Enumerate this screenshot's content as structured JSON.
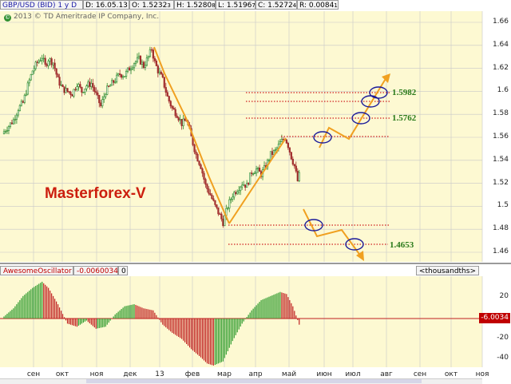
{
  "header": {
    "symbol": "GBP/USD (BID) 1 y D",
    "date": "D: 16.05.13",
    "open": "O: 1.5232",
    "open_small": "3",
    "high": "H: 1.5280",
    "high_small": "8",
    "low": "L: 1.5196",
    "low_small": "7",
    "close": "C: 1.5272",
    "close_small": "4",
    "range": "R: 0.0084",
    "range_small": "1"
  },
  "copyright": "2013 © TD Ameritrade IP Company, Inc.",
  "watermark": "Masterforex-V",
  "levels": {
    "upper_top": "1.5982",
    "upper_mid": "1.5762",
    "lower": "1.4653"
  },
  "price_axis": [
    "1.66",
    "1.64",
    "1.62",
    "1.6",
    "1.58",
    "1.56",
    "1.54",
    "1.52",
    "1.5",
    "1.48",
    "1.46"
  ],
  "oscillator": {
    "name": "AwesomeOscillator",
    "value": "-0.0060034",
    "param": "0",
    "units": "<thousandths>",
    "current_label": "-6.0034",
    "axis": [
      "20",
      "0",
      "-20",
      "-40"
    ]
  },
  "time_axis": [
    "сен",
    "окт",
    "ноя",
    "дек",
    "13",
    "фев",
    "мар",
    "апр",
    "май",
    "июн",
    "июл",
    "авг",
    "сен",
    "окт",
    "ноя"
  ],
  "colors": {
    "chart_bg": "#fdf9d2",
    "grid": "#c8c8c8",
    "candle_up": "#2b8a2b",
    "candle_down": "#a12d2d",
    "annotation": "#f0a020",
    "level_line": "#d02020",
    "ellipse": "#1a1a9a",
    "osc_up": "#2b9a2b",
    "osc_down": "#c02020"
  },
  "chart_data": {
    "type": "candlestick",
    "symbol": "GBP/USD",
    "timeframe": "D",
    "y_range": [
      1.455,
      1.67
    ],
    "x": [
      "сен",
      "окт",
      "ноя",
      "дек",
      "13",
      "фев",
      "мар",
      "апр",
      "май"
    ],
    "close_path": [
      [
        0,
        1.565
      ],
      [
        3,
        1.57
      ],
      [
        6,
        1.575
      ],
      [
        9,
        1.585
      ],
      [
        12,
        1.59
      ],
      [
        15,
        1.605
      ],
      [
        18,
        1.618
      ],
      [
        21,
        1.625
      ],
      [
        24,
        1.63
      ],
      [
        26,
        1.622
      ],
      [
        28,
        1.628
      ],
      [
        31,
        1.625
      ],
      [
        34,
        1.61
      ],
      [
        37,
        1.602
      ],
      [
        40,
        1.6
      ],
      [
        43,
        1.598
      ],
      [
        46,
        1.607
      ],
      [
        49,
        1.6
      ],
      [
        52,
        1.605
      ],
      [
        55,
        1.607
      ],
      [
        58,
        1.597
      ],
      [
        61,
        1.587
      ],
      [
        64,
        1.6
      ],
      [
        67,
        1.605
      ],
      [
        70,
        1.61
      ],
      [
        73,
        1.615
      ],
      [
        76,
        1.614
      ],
      [
        79,
        1.62
      ],
      [
        82,
        1.625
      ],
      [
        85,
        1.628
      ],
      [
        88,
        1.622
      ],
      [
        91,
        1.63
      ],
      [
        93,
        1.637
      ],
      [
        95,
        1.625
      ],
      [
        97,
        1.618
      ],
      [
        100,
        1.61
      ],
      [
        103,
        1.595
      ],
      [
        106,
        1.585
      ],
      [
        109,
        1.58
      ],
      [
        112,
        1.572
      ],
      [
        115,
        1.575
      ],
      [
        118,
        1.56
      ],
      [
        121,
        1.545
      ],
      [
        124,
        1.535
      ],
      [
        127,
        1.518
      ],
      [
        130,
        1.51
      ],
      [
        133,
        1.5
      ],
      [
        136,
        1.492
      ],
      [
        138,
        1.486
      ],
      [
        141,
        1.5
      ],
      [
        144,
        1.51
      ],
      [
        147,
        1.515
      ],
      [
        150,
        1.52
      ],
      [
        153,
        1.518
      ],
      [
        156,
        1.53
      ],
      [
        159,
        1.532
      ],
      [
        162,
        1.528
      ],
      [
        165,
        1.535
      ],
      [
        168,
        1.545
      ],
      [
        171,
        1.548
      ],
      [
        174,
        1.555
      ],
      [
        177,
        1.56
      ],
      [
        179,
        1.553
      ],
      [
        181,
        1.543
      ],
      [
        183,
        1.535
      ],
      [
        185,
        1.522
      ],
      [
        186,
        1.527
      ]
    ],
    "oscillator_values": [
      [
        0,
        2
      ],
      [
        6,
        10
      ],
      [
        12,
        22
      ],
      [
        18,
        30
      ],
      [
        24,
        36
      ],
      [
        28,
        30
      ],
      [
        34,
        14
      ],
      [
        40,
        -5
      ],
      [
        46,
        -8
      ],
      [
        52,
        -2
      ],
      [
        58,
        -10
      ],
      [
        64,
        -8
      ],
      [
        70,
        4
      ],
      [
        76,
        12
      ],
      [
        82,
        14
      ],
      [
        88,
        10
      ],
      [
        94,
        8
      ],
      [
        100,
        -6
      ],
      [
        106,
        -14
      ],
      [
        112,
        -20
      ],
      [
        118,
        -30
      ],
      [
        124,
        -38
      ],
      [
        128,
        -44
      ],
      [
        132,
        -46
      ],
      [
        138,
        -42
      ],
      [
        144,
        -22
      ],
      [
        150,
        -5
      ],
      [
        156,
        8
      ],
      [
        162,
        18
      ],
      [
        168,
        22
      ],
      [
        174,
        26
      ],
      [
        178,
        24
      ],
      [
        182,
        12
      ],
      [
        186,
        -6
      ]
    ]
  }
}
